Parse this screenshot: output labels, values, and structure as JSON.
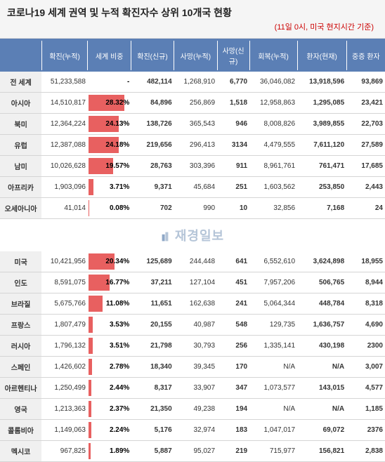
{
  "title": "코로나19 세계 권역 및 누적 확진자수 상위 10개국 현황",
  "subtitle": "(11일 0시, 미국 현지시간 기준)",
  "watermark": "재경일보",
  "headers": {
    "h1": "확진(누적)",
    "h2": "세계 비중",
    "h3": "확진(신규)",
    "h4": "사망(누적)",
    "h5": "사망(신규)",
    "h6": "회복(누적)",
    "h7": "환자(현재)",
    "h8": "중증 환자"
  },
  "colors": {
    "header_bg": "#5b7fb5",
    "bar": "#e86060",
    "row_label_bg": "#f0f0f0",
    "border": "#d5d5d5"
  },
  "max_pct": 30,
  "regions": [
    {
      "name": "전 세계",
      "confirmed": "51,233,588",
      "pct": "-",
      "pct_val": 0,
      "new_c": "482,114",
      "deaths": "1,268,910",
      "new_d": "6,770",
      "recovered": "36,046,082",
      "active": "13,918,596",
      "critical": "93,869"
    },
    {
      "name": "아시아",
      "confirmed": "14,510,817",
      "pct": "28.32%",
      "pct_val": 28.32,
      "new_c": "84,896",
      "deaths": "256,869",
      "new_d": "1,518",
      "recovered": "12,958,863",
      "active": "1,295,085",
      "critical": "23,421"
    },
    {
      "name": "북미",
      "confirmed": "12,364,224",
      "pct": "24.13%",
      "pct_val": 24.13,
      "new_c": "138,726",
      "deaths": "365,543",
      "new_d": "946",
      "recovered": "8,008,826",
      "active": "3,989,855",
      "critical": "22,703"
    },
    {
      "name": "유럽",
      "confirmed": "12,387,088",
      "pct": "24.18%",
      "pct_val": 24.18,
      "new_c": "219,656",
      "deaths": "296,413",
      "new_d": "3134",
      "recovered": "4,479,555",
      "active": "7,611,120",
      "critical": "27,589"
    },
    {
      "name": "남미",
      "confirmed": "10,026,628",
      "pct": "19.57%",
      "pct_val": 19.57,
      "new_c": "28,763",
      "deaths": "303,396",
      "new_d": "911",
      "recovered": "8,961,761",
      "active": "761,471",
      "critical": "17,685"
    },
    {
      "name": "아프리카",
      "confirmed": "1,903,096",
      "pct": "3.71%",
      "pct_val": 3.71,
      "new_c": "9,371",
      "deaths": "45,684",
      "new_d": "251",
      "recovered": "1,603,562",
      "active": "253,850",
      "critical": "2,443"
    },
    {
      "name": "오세아니아",
      "confirmed": "41,014",
      "pct": "0.08%",
      "pct_val": 0.08,
      "new_c": "702",
      "deaths": "990",
      "new_d": "10",
      "recovered": "32,856",
      "active": "7,168",
      "critical": "24"
    }
  ],
  "countries": [
    {
      "name": "미국",
      "confirmed": "10,421,956",
      "pct": "20.34%",
      "pct_val": 20.34,
      "new_c": "125,689",
      "deaths": "244,448",
      "new_d": "641",
      "recovered": "6,552,610",
      "active": "3,624,898",
      "critical": "18,955"
    },
    {
      "name": "인도",
      "confirmed": "8,591,075",
      "pct": "16.77%",
      "pct_val": 16.77,
      "new_c": "37,211",
      "deaths": "127,104",
      "new_d": "451",
      "recovered": "7,957,206",
      "active": "506,765",
      "critical": "8,944"
    },
    {
      "name": "브라질",
      "confirmed": "5,675,766",
      "pct": "11.08%",
      "pct_val": 11.08,
      "new_c": "11,651",
      "deaths": "162,638",
      "new_d": "241",
      "recovered": "5,064,344",
      "active": "448,784",
      "critical": "8,318"
    },
    {
      "name": "프랑스",
      "confirmed": "1,807,479",
      "pct": "3.53%",
      "pct_val": 3.53,
      "new_c": "20,155",
      "deaths": "40,987",
      "new_d": "548",
      "recovered": "129,735",
      "active": "1,636,757",
      "critical": "4,690"
    },
    {
      "name": "러시아",
      "confirmed": "1,796,132",
      "pct": "3.51%",
      "pct_val": 3.51,
      "new_c": "21,798",
      "deaths": "30,793",
      "new_d": "256",
      "recovered": "1,335,141",
      "active": "430,198",
      "critical": "2300"
    },
    {
      "name": "스페인",
      "confirmed": "1,426,602",
      "pct": "2.78%",
      "pct_val": 2.78,
      "new_c": "18,340",
      "deaths": "39,345",
      "new_d": "170",
      "recovered": "N/A",
      "active": "N/A",
      "critical": "3,007"
    },
    {
      "name": "아르헨티나",
      "confirmed": "1,250,499",
      "pct": "2.44%",
      "pct_val": 2.44,
      "new_c": "8,317",
      "deaths": "33,907",
      "new_d": "347",
      "recovered": "1,073,577",
      "active": "143,015",
      "critical": "4,577"
    },
    {
      "name": "영국",
      "confirmed": "1,213,363",
      "pct": "2.37%",
      "pct_val": 2.37,
      "new_c": "21,350",
      "deaths": "49,238",
      "new_d": "194",
      "recovered": "N/A",
      "active": "N/A",
      "critical": "1,185"
    },
    {
      "name": "콜롬비아",
      "confirmed": "1,149,063",
      "pct": "2.24%",
      "pct_val": 2.24,
      "new_c": "5,176",
      "deaths": "32,974",
      "new_d": "183",
      "recovered": "1,047,017",
      "active": "69,072",
      "critical": "2376"
    },
    {
      "name": "멕시코",
      "confirmed": "967,825",
      "pct": "1.89%",
      "pct_val": 1.89,
      "new_c": "5,887",
      "deaths": "95,027",
      "new_d": "219",
      "recovered": "715,977",
      "active": "156,821",
      "critical": "2,838"
    }
  ]
}
